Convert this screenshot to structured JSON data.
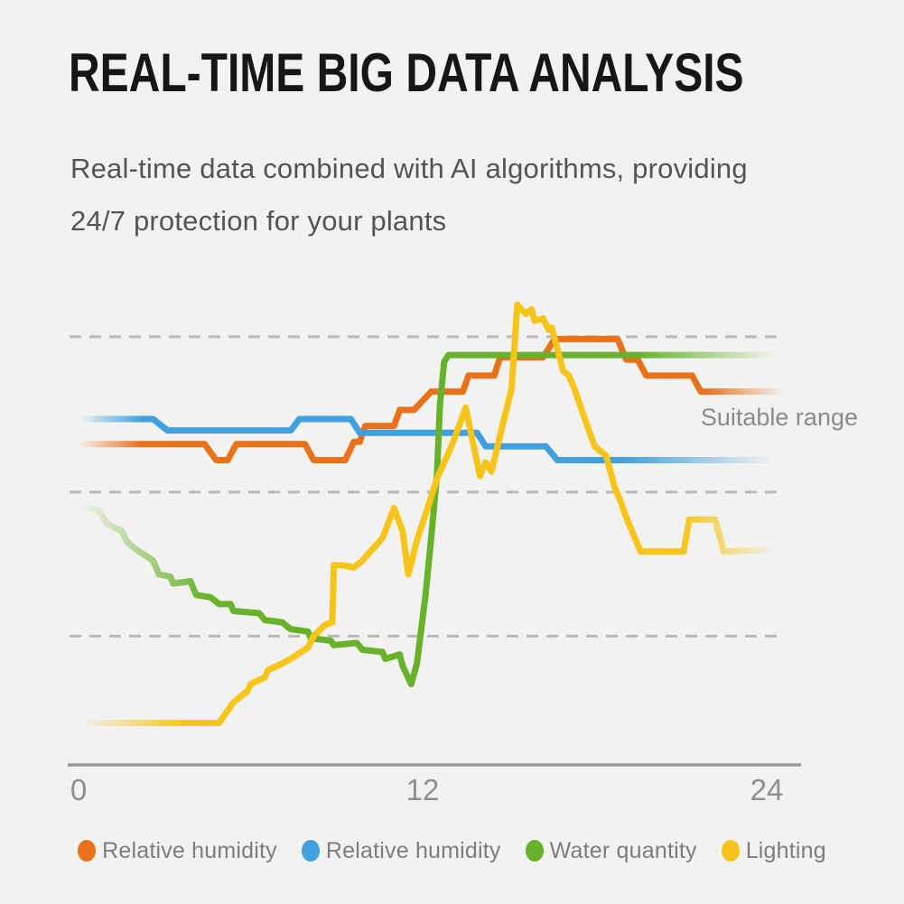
{
  "page": {
    "background": "#f2f2f0",
    "title": "REAL-TIME BIG DATA ANALYSIS",
    "subtitle_line1": "Real-time data combined with AI algorithms, providing",
    "subtitle_line2": "24/7 protection for your plants"
  },
  "chart_data": {
    "type": "line",
    "title": "",
    "xlabel": "",
    "ylabel": "",
    "x_ticks": [
      0,
      12,
      24
    ],
    "x_range": [
      0,
      24.6
    ],
    "y_range": [
      0,
      105
    ],
    "grid_on": true,
    "gridline_values": [
      93.5,
      59.5,
      28
    ],
    "gridline_style": "dashed",
    "annotation": {
      "text": "Suitable range",
      "x": 27.2,
      "y": 74.2
    },
    "legend_position": "bottom",
    "axis_color": "#9b9b9b",
    "grid_color": "#b9b9b7",
    "tick_color": "#8f8f8f",
    "annotation_color": "#8a8a8a",
    "series": [
      {
        "name": "Relative humidity",
        "color": "#E8711C",
        "fade_in_until": 2.2,
        "fade_out_from": 21.8,
        "points": [
          [
            0,
            70
          ],
          [
            4.4,
            70
          ],
          [
            4.8,
            66.5
          ],
          [
            5.2,
            66.5
          ],
          [
            5.5,
            70
          ],
          [
            7.9,
            70
          ],
          [
            8.2,
            66.5
          ],
          [
            9.3,
            66.5
          ],
          [
            9.6,
            70.5
          ],
          [
            9.8,
            70.5
          ],
          [
            10,
            74
          ],
          [
            11,
            74
          ],
          [
            11.2,
            77.5
          ],
          [
            11.7,
            77.5
          ],
          [
            12.3,
            81.5
          ],
          [
            13.4,
            81.5
          ],
          [
            13.6,
            85
          ],
          [
            14.5,
            85
          ],
          [
            14.7,
            89
          ],
          [
            16.2,
            89
          ],
          [
            16.6,
            93
          ],
          [
            18.8,
            93
          ],
          [
            19.1,
            88.5
          ],
          [
            19.5,
            88.5
          ],
          [
            19.8,
            85
          ],
          [
            21.4,
            85
          ],
          [
            21.7,
            81.5
          ],
          [
            24.6,
            81.5
          ]
        ]
      },
      {
        "name": "Relative humidity",
        "color": "#40A1DE",
        "fade_in_until": 2.2,
        "fade_out_from": 19.0,
        "points": [
          [
            0,
            75.5
          ],
          [
            2.6,
            75.5
          ],
          [
            3.1,
            73
          ],
          [
            7.4,
            73
          ],
          [
            7.7,
            75.5
          ],
          [
            9.5,
            75.5
          ],
          [
            9.8,
            72.5
          ],
          [
            13.9,
            72.5
          ],
          [
            14.2,
            69.5
          ],
          [
            16.3,
            69.5
          ],
          [
            16.7,
            66.5
          ],
          [
            24.2,
            66.5
          ]
        ]
      },
      {
        "name": "Water quantity",
        "color": "#67B22A",
        "fade_in_until": 4.5,
        "fade_out_from": 19.5,
        "points": [
          [
            0,
            56
          ],
          [
            0.4,
            56
          ],
          [
            0.7,
            55.5
          ],
          [
            1,
            52.5
          ],
          [
            1.5,
            51
          ],
          [
            1.7,
            48.5
          ],
          [
            2,
            47
          ],
          [
            2.6,
            44.5
          ],
          [
            2.8,
            41.5
          ],
          [
            3.2,
            41
          ],
          [
            3.3,
            39.5
          ],
          [
            3.9,
            40
          ],
          [
            4.1,
            37
          ],
          [
            4.6,
            36.5
          ],
          [
            4.9,
            35
          ],
          [
            5.3,
            35
          ],
          [
            5.4,
            33.5
          ],
          [
            6.3,
            33
          ],
          [
            6.5,
            31.5
          ],
          [
            7.1,
            31
          ],
          [
            7.4,
            29.5
          ],
          [
            8,
            29
          ],
          [
            8.1,
            27.5
          ],
          [
            8.8,
            27
          ],
          [
            8.9,
            26
          ],
          [
            9.7,
            26.5
          ],
          [
            9.9,
            25
          ],
          [
            10.6,
            24.5
          ],
          [
            10.7,
            23
          ],
          [
            11.2,
            24
          ],
          [
            11.3,
            21.5
          ],
          [
            11.6,
            17.5
          ],
          [
            11.8,
            22
          ],
          [
            12.1,
            37
          ],
          [
            12.3,
            49.5
          ],
          [
            12.5,
            63.5
          ],
          [
            12.6,
            78.5
          ],
          [
            12.75,
            88
          ],
          [
            12.9,
            89.5
          ],
          [
            24.3,
            89.5
          ]
        ]
      },
      {
        "name": "Lighting",
        "color": "#F6C41B",
        "fade_in_until": 3.8,
        "fade_out_from": 21.0,
        "points": [
          [
            0.1,
            9
          ],
          [
            4.9,
            9
          ],
          [
            5.4,
            13.5
          ],
          [
            5.9,
            16
          ],
          [
            6,
            17.5
          ],
          [
            6.5,
            19
          ],
          [
            6.6,
            20.5
          ],
          [
            7.1,
            22
          ],
          [
            7.4,
            23
          ],
          [
            8,
            25.5
          ],
          [
            8.2,
            28
          ],
          [
            8.6,
            30.5
          ],
          [
            8.85,
            31
          ],
          [
            8.9,
            43.5
          ],
          [
            9.2,
            43.5
          ],
          [
            9.6,
            43
          ],
          [
            9.9,
            44.5
          ],
          [
            10.1,
            46
          ],
          [
            10.4,
            48
          ],
          [
            10.6,
            49.5
          ],
          [
            10.7,
            51
          ],
          [
            11,
            56
          ],
          [
            11.3,
            51
          ],
          [
            11.5,
            41.5
          ],
          [
            11.8,
            49
          ],
          [
            12.2,
            56.5
          ],
          [
            12.5,
            62.5
          ],
          [
            13,
            69.5
          ],
          [
            13.3,
            74.5
          ],
          [
            13.5,
            78
          ],
          [
            14,
            63
          ],
          [
            14.2,
            66
          ],
          [
            14.4,
            64
          ],
          [
            14.8,
            74.5
          ],
          [
            15.1,
            82
          ],
          [
            15.3,
            100.5
          ],
          [
            15.6,
            98.5
          ],
          [
            15.8,
            99.5
          ],
          [
            15.9,
            97
          ],
          [
            16.2,
            97.5
          ],
          [
            16.4,
            95
          ],
          [
            16.5,
            95.5
          ],
          [
            16.8,
            88.5
          ],
          [
            16.9,
            86
          ],
          [
            17.1,
            85
          ],
          [
            17.3,
            82
          ],
          [
            17.6,
            76.5
          ],
          [
            17.8,
            73
          ],
          [
            18,
            69.5
          ],
          [
            18.1,
            69
          ],
          [
            18.4,
            67.5
          ],
          [
            18.7,
            60.5
          ],
          [
            18.9,
            57.5
          ],
          [
            19.1,
            54
          ],
          [
            19.6,
            46.5
          ],
          [
            21.1,
            46.5
          ],
          [
            21.3,
            53.5
          ],
          [
            22.2,
            53.5
          ],
          [
            22.5,
            46.5
          ],
          [
            24.3,
            47
          ]
        ]
      }
    ]
  },
  "legend": [
    {
      "label": "Relative humidity",
      "color": "#E8711C"
    },
    {
      "label": "Relative humidity",
      "color": "#40A1DE"
    },
    {
      "label": "Water quantity",
      "color": "#67B22A"
    },
    {
      "label": "Lighting",
      "color": "#F6C41B"
    }
  ]
}
